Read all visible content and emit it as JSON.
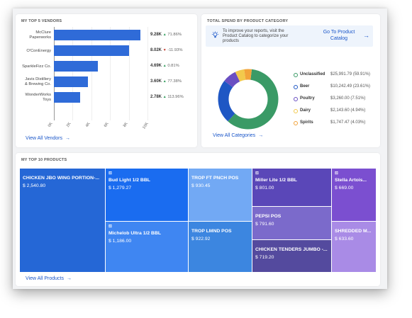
{
  "vendors": {
    "title": "MY TOP 5 VENDORS",
    "link": "View All Vendors",
    "items": [
      {
        "name_line1": "McClure",
        "name_line2": "Paperworks",
        "amount": "9.28K",
        "dir": "up",
        "dir_icon": "▲",
        "pct": "71.86%",
        "value": 9.28
      },
      {
        "name_line1": "O'ConEnergy",
        "name_line2": "",
        "amount": "8.02K",
        "dir": "down",
        "dir_icon": "▼",
        "pct": "-11.93%",
        "value": 8.02
      },
      {
        "name_line1": "SparkleFizz Co.",
        "name_line2": "",
        "amount": "4.69K",
        "dir": "up",
        "dir_icon": "▲",
        "pct": "0.81%",
        "value": 4.69
      },
      {
        "name_line1": "Javis Distillery",
        "name_line2": "& Brewing Co.",
        "amount": "3.60K",
        "dir": "up",
        "dir_icon": "▲",
        "pct": "77.38%",
        "value": 3.6
      },
      {
        "name_line1": "WonderWorks",
        "name_line2": "Toys",
        "amount": "2.78K",
        "dir": "up",
        "dir_icon": "▲",
        "pct": "113.96%",
        "value": 2.78
      }
    ],
    "ticks": [
      "0K",
      "2K",
      "4K",
      "6K",
      "8K",
      "10K"
    ],
    "max": 10
  },
  "category": {
    "title": "TOTAL SPEND BY PRODUCT CATEGORY",
    "banner_text": "To improve your reports, visit the Product Catalog to categorize your products",
    "banner_link": "Go To Product Catalog",
    "link": "View All Categories",
    "items": [
      {
        "name": "Unclassified",
        "amount": "$25,991.79",
        "pct": "(59.91%)",
        "value": 59.91,
        "color": "#3a9a66"
      },
      {
        "name": "Beer",
        "amount": "$10,242.49",
        "pct": "(23.61%)",
        "value": 23.61,
        "color": "#1f57c4"
      },
      {
        "name": "Poultry",
        "amount": "$3,260.00",
        "pct": "(7.51%)",
        "value": 7.51,
        "color": "#6a4fc2"
      },
      {
        "name": "Dairy",
        "amount": "$2,143.60",
        "pct": "(4.94%)",
        "value": 4.94,
        "color": "#f2c94c"
      },
      {
        "name": "Spirits",
        "amount": "$1,747.47",
        "pct": "(4.03%)",
        "value": 4.03,
        "color": "#f2a33a"
      }
    ]
  },
  "products": {
    "title": "MY TOP 10 PRODUCTS",
    "link": "View All Products",
    "items": [
      {
        "name": "CHICKEN JBO WING PORTION-...",
        "amount": "$ 2,540.80",
        "color": "#2567d6",
        "has_icon": false
      },
      {
        "name": "Bud Light 1/2 BBL",
        "amount": "$ 1,279.27",
        "color": "#1a6cf0",
        "has_icon": true
      },
      {
        "name": "Michelob Ultra 1/2 BBL",
        "amount": "$ 1,186.00",
        "color": "#3f86f2",
        "has_icon": true
      },
      {
        "name": "TROP FT PNCH POS",
        "amount": "$ 930.45",
        "color": "#72a9f4",
        "has_icon": false
      },
      {
        "name": "TROP LMND POS",
        "amount": "$ 922.92",
        "color": "#3c86e0",
        "has_icon": false
      },
      {
        "name": "Miller Lite 1/2 BBL",
        "amount": "$ 801.00",
        "color": "#5a47b8",
        "has_icon": true
      },
      {
        "name": "PEPSI POS",
        "amount": "$ 791.60",
        "color": "#7b6acb",
        "has_icon": false
      },
      {
        "name": "CHICKEN TENDERS JUMBO -...",
        "amount": "$ 719.20",
        "color": "#544a9e",
        "has_icon": false
      },
      {
        "name": "Stella Artois...",
        "amount": "$ 669.00",
        "color": "#7b4fd0",
        "has_icon": true
      },
      {
        "name": "SHREDDED M...",
        "amount": "$ 633.60",
        "color": "#a98be6",
        "has_icon": false
      }
    ]
  },
  "icons": {
    "bulb": "lightbulb-icon",
    "arrow": "arrow-right-icon",
    "mug": "beer-mug-icon"
  }
}
